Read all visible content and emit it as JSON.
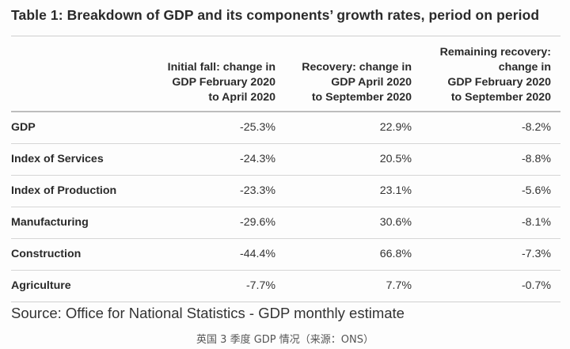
{
  "table": {
    "title": "Table 1: Breakdown of GDP and its components’ growth rates, period on period",
    "columns": [
      "Initial fall: change in\nGDP February 2020\nto April 2020",
      "Recovery: change in\nGDP April 2020\nto September 2020",
      "Remaining recovery:\nchange in\nGDP February 2020\nto September 2020"
    ],
    "rows": [
      {
        "label": "GDP",
        "values": [
          "-25.3%",
          "22.9%",
          "-8.2%"
        ]
      },
      {
        "label": "Index of Services",
        "values": [
          "-24.3%",
          "20.5%",
          "-8.8%"
        ]
      },
      {
        "label": "Index of Production",
        "values": [
          "-23.3%",
          "23.1%",
          "-5.6%"
        ]
      },
      {
        "label": "Manufacturing",
        "values": [
          "-29.6%",
          "30.6%",
          "-8.1%"
        ]
      },
      {
        "label": "Construction",
        "values": [
          "-44.4%",
          "66.8%",
          "-7.3%"
        ]
      },
      {
        "label": "Agriculture",
        "values": [
          "-7.7%",
          "7.7%",
          "-0.7%"
        ]
      }
    ],
    "source": "Source: Office for National Statistics - GDP monthly estimate"
  },
  "caption": "英国 3 季度 GDP 情况（来源：ONS）"
}
